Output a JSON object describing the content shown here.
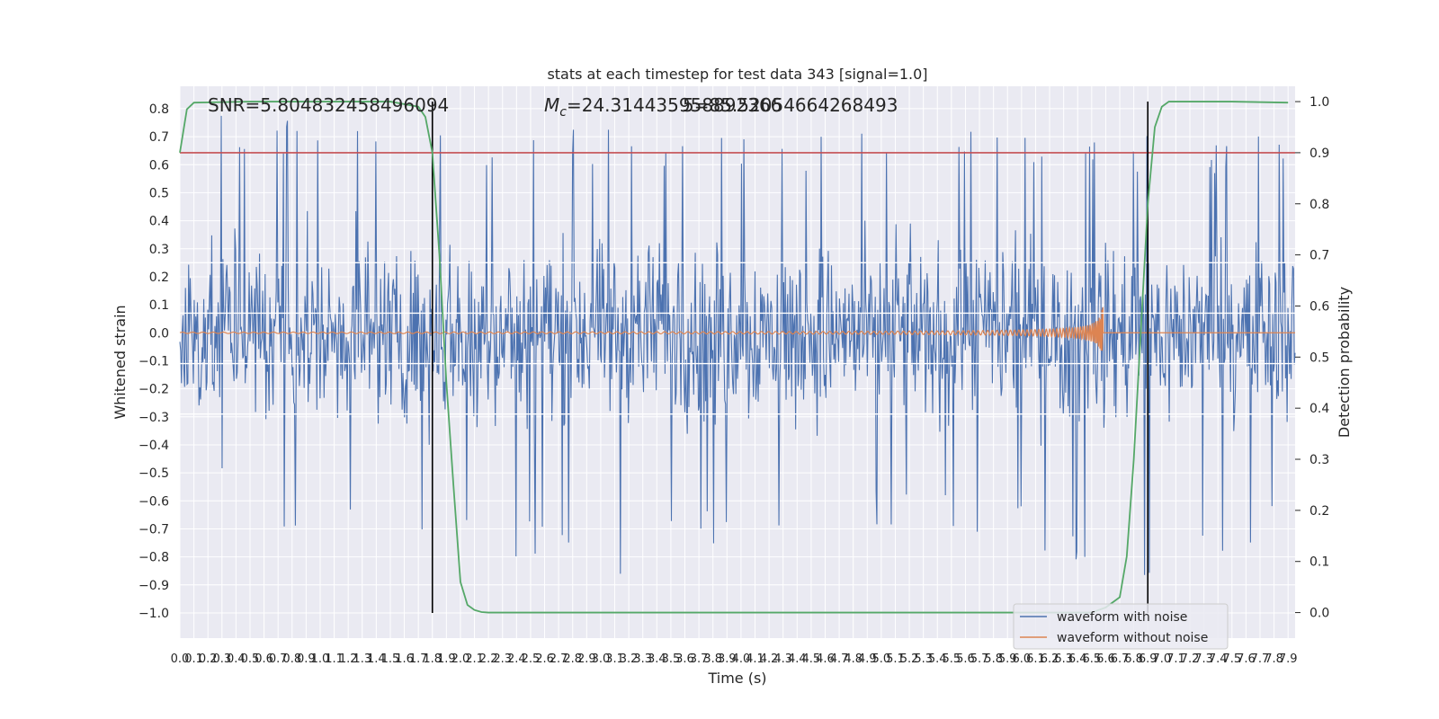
{
  "chart_data": {
    "type": "line",
    "title": "stats at each timestep for test data 343 [signal=1.0]",
    "xlabel": "Time (s)",
    "ylabel": "Whitened strain",
    "y2label": "Detection probability",
    "xlim": [
      0.0,
      7.95
    ],
    "ylim": [
      -1.09,
      0.88
    ],
    "y2lim": [
      -0.05,
      1.03
    ],
    "x_tick_labels": [
      "0.0",
      "0.1",
      "0.2",
      "0.3",
      "0.4",
      "0.5",
      "0.6",
      "0.7",
      "0.8",
      "0.9",
      "1.0",
      "1.1",
      "1.2",
      "1.3",
      "1.4",
      "1.5",
      "1.6",
      "1.7",
      "1.8",
      "1.9",
      "2.0",
      "2.1",
      "2.2",
      "2.3",
      "2.4",
      "2.5",
      "2.6",
      "2.7",
      "2.8",
      "2.9",
      "3.0",
      "3.1",
      "3.2",
      "3.3",
      "3.4",
      "3.5",
      "3.6",
      "3.7",
      "3.8",
      "3.9",
      "4.0",
      "4.1",
      "4.2",
      "4.3",
      "4.4",
      "4.5",
      "4.6",
      "4.7",
      "4.8",
      "4.9",
      "5.0",
      "5.1",
      "5.2",
      "5.3",
      "5.4",
      "5.5",
      "5.6",
      "5.7",
      "5.8",
      "5.9",
      "6.0",
      "6.1",
      "6.2",
      "6.3",
      "6.4",
      "6.5",
      "6.6",
      "6.7",
      "6.8",
      "6.9",
      "7.0",
      "7.1",
      "7.2",
      "7.3",
      "7.4",
      "7.5",
      "7.6",
      "7.7",
      "7.8",
      "7.9"
    ],
    "y_tick_labels": [
      "0.8",
      "0.7",
      "0.6",
      "0.5",
      "0.4",
      "0.3",
      "0.2",
      "0.1",
      "0.0",
      "−0.1",
      "−0.2",
      "−0.3",
      "−0.4",
      "−0.5",
      "−0.6",
      "−0.7",
      "−0.8",
      "−0.9",
      "−1.0"
    ],
    "y_ticks": [
      0.8,
      0.7,
      0.6,
      0.5,
      0.4,
      0.3,
      0.2,
      0.1,
      0.0,
      -0.1,
      -0.2,
      -0.3,
      -0.4,
      -0.5,
      -0.6,
      -0.7,
      -0.8,
      -0.9,
      -1.0
    ],
    "y2_tick_labels": [
      "1.0",
      "0.9",
      "0.8",
      "0.7",
      "0.6",
      "0.5",
      "0.4",
      "0.3",
      "0.2",
      "0.1",
      "0.0"
    ],
    "y2_ticks": [
      1.0,
      0.9,
      0.8,
      0.7,
      0.6,
      0.5,
      0.4,
      0.3,
      0.2,
      0.1,
      0.0
    ],
    "series": [
      {
        "name": "waveform with noise",
        "color": "#4c72b0",
        "axis": "left",
        "envelope_x": [
          0.0,
          1.0,
          2.0,
          3.0,
          4.0,
          5.0,
          6.0,
          7.0,
          7.95
        ],
        "envelope_max": [
          0.8,
          0.78,
          0.75,
          0.73,
          0.72,
          0.72,
          0.74,
          0.7,
          0.72
        ],
        "envelope_min": [
          -0.52,
          -0.78,
          -0.77,
          -0.9,
          -0.73,
          -0.7,
          -0.75,
          -0.95,
          -0.65
        ]
      },
      {
        "name": "waveform without noise",
        "color": "#dd8452",
        "axis": "left",
        "chirp_start_x": 0.0,
        "merger_x": 6.58,
        "peak_amplitude": 0.26,
        "min_amplitude": -0.3
      },
      {
        "name": "detection probability",
        "color": "#55a868",
        "axis": "right",
        "x": [
          0.0,
          0.05,
          0.1,
          0.5,
          1.0,
          1.5,
          1.7,
          1.75,
          1.8,
          1.85,
          1.9,
          1.95,
          2.0,
          2.05,
          2.1,
          2.15,
          2.2,
          2.3,
          2.5,
          6.0,
          6.5,
          6.6,
          6.7,
          6.75,
          6.8,
          6.85,
          6.9,
          6.95,
          7.0,
          7.05,
          7.1,
          7.5,
          7.9
        ],
        "y": [
          0.9,
          0.985,
          0.998,
          1.0,
          1.0,
          1.0,
          0.99,
          0.97,
          0.9,
          0.7,
          0.45,
          0.25,
          0.06,
          0.015,
          0.005,
          0.001,
          0.0,
          0.0,
          0.0,
          0.0,
          0.0,
          0.01,
          0.03,
          0.11,
          0.3,
          0.55,
          0.8,
          0.95,
          0.99,
          1.0,
          1.0,
          1.0,
          0.998
        ]
      }
    ],
    "threshold_line": {
      "axis": "right",
      "y": 0.9,
      "color": "#c44e52"
    },
    "white_hlines_left": [
      0.25,
      0.07,
      -0.11,
      -0.29
    ],
    "vlines_x": [
      1.8,
      6.9
    ],
    "vline_ymin": -1.0,
    "vline_ymax_right": 1.0,
    "annotations": [
      {
        "text": "SNR=5.804832458496094"
      },
      {
        "text": "=24.314435958892366",
        "prefix_italic": "M",
        "prefix_sub": "c"
      },
      {
        "text": "5=85.52054664268493"
      }
    ],
    "legend": {
      "placement": "lower-right",
      "entries": [
        "waveform with noise",
        "waveform without noise"
      ]
    },
    "grid": true
  }
}
